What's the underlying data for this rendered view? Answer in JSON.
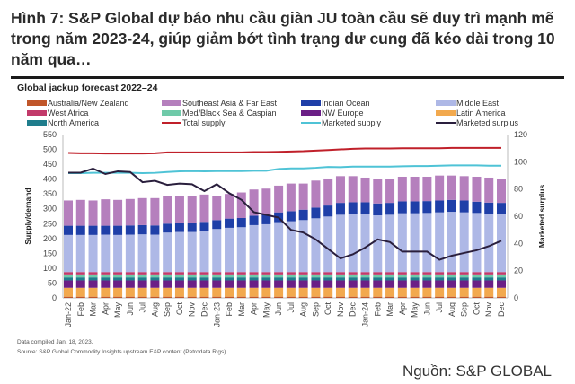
{
  "header": {
    "title": "Hình 7: S&P Global dự báo nhu cầu giàn JU toàn cầu sẽ duy trì mạnh mẽ trong năm 2023-24, giúp giảm bớt tình trạng dư cung đã kéo dài trong 10 năm qua…"
  },
  "footer": {
    "note": "Data compiled Jan. 18, 2023.",
    "source": "Source: S&P Global Commodity Insights upstream E&P content (Petrodata Rigs).",
    "credit": "Nguồn: S&P GLOBAL"
  },
  "chart_data": {
    "type": "bar",
    "title": "Global jackup forecast 2022–24",
    "ylabel": "Supply/demand",
    "y2label": "Marketed surplus",
    "ylim": [
      0,
      550
    ],
    "y2lim": [
      0,
      120
    ],
    "yticks": [
      "0",
      "50",
      "100",
      "150",
      "200",
      "250",
      "300",
      "350",
      "400",
      "450",
      "500",
      "550"
    ],
    "y2ticks": [
      "0",
      "20",
      "40",
      "60",
      "80",
      "100",
      "120"
    ],
    "legend_position": "top",
    "categories": [
      "Jan-22",
      "Feb",
      "Mar",
      "Apr",
      "May",
      "Jun",
      "Jul",
      "Aug",
      "Sep",
      "Oct",
      "Nov",
      "Dec",
      "Jan-23",
      "Feb",
      "Mar",
      "Apr",
      "May",
      "Jun",
      "Jul",
      "Aug",
      "Sep",
      "Oct",
      "Nov",
      "Dec",
      "Jan-24",
      "Feb",
      "Mar",
      "Apr",
      "May",
      "Jun",
      "Jul",
      "Aug",
      "Sep",
      "Oct",
      "Nov",
      "Dec"
    ],
    "stack_series": [
      {
        "name": "Australia/New Zealand",
        "color": "#c0562a",
        "values": [
          4,
          4,
          4,
          4,
          4,
          4,
          4,
          4,
          4,
          4,
          4,
          4,
          4,
          4,
          4,
          4,
          4,
          4,
          4,
          4,
          4,
          4,
          4,
          4,
          4,
          4,
          4,
          4,
          4,
          4,
          4,
          4,
          4,
          4,
          4,
          4
        ]
      },
      {
        "name": "Latin America",
        "color": "#f2a94e",
        "values": [
          30,
          30,
          30,
          30,
          30,
          30,
          30,
          30,
          30,
          30,
          30,
          30,
          30,
          30,
          30,
          30,
          30,
          30,
          30,
          30,
          30,
          30,
          30,
          30,
          30,
          30,
          30,
          30,
          30,
          30,
          30,
          30,
          30,
          30,
          30,
          30
        ]
      },
      {
        "name": "NW Europe",
        "color": "#6b1f86",
        "values": [
          25,
          25,
          25,
          25,
          25,
          25,
          25,
          25,
          25,
          25,
          25,
          25,
          25,
          25,
          25,
          25,
          25,
          25,
          25,
          25,
          25,
          25,
          25,
          25,
          25,
          25,
          25,
          25,
          25,
          25,
          25,
          25,
          25,
          25,
          25,
          25
        ]
      },
      {
        "name": "North America",
        "color": "#1f7d8c",
        "values": [
          10,
          10,
          10,
          10,
          10,
          10,
          10,
          10,
          10,
          10,
          10,
          10,
          10,
          10,
          10,
          10,
          10,
          10,
          10,
          10,
          10,
          10,
          10,
          10,
          10,
          10,
          10,
          10,
          10,
          10,
          10,
          10,
          10,
          10,
          10,
          10
        ]
      },
      {
        "name": "Med/Black Sea & Caspian",
        "color": "#6fcaa9",
        "values": [
          10,
          10,
          10,
          10,
          10,
          10,
          10,
          10,
          10,
          10,
          10,
          10,
          10,
          10,
          10,
          10,
          10,
          10,
          10,
          10,
          10,
          10,
          10,
          10,
          10,
          10,
          10,
          10,
          10,
          10,
          10,
          10,
          10,
          10,
          10,
          10
        ]
      },
      {
        "name": "West Africa",
        "color": "#c23a6a",
        "values": [
          8,
          8,
          8,
          8,
          8,
          8,
          8,
          8,
          8,
          8,
          8,
          8,
          8,
          8,
          8,
          8,
          8,
          8,
          8,
          8,
          8,
          8,
          8,
          8,
          8,
          8,
          8,
          8,
          8,
          8,
          8,
          8,
          8,
          8,
          8,
          8
        ]
      },
      {
        "name": "Middle East",
        "color": "#aeb8e6",
        "values": [
          125,
          125,
          125,
          126,
          125,
          126,
          127,
          126,
          133,
          135,
          135,
          139,
          145,
          149,
          151,
          158,
          161,
          168,
          171,
          175,
          181,
          187,
          193,
          195,
          195,
          191,
          193,
          198,
          198,
          199,
          201,
          203,
          201,
          199,
          197,
          197
        ]
      },
      {
        "name": "Indian Ocean",
        "color": "#1f3fa8",
        "values": [
          31,
          31,
          31,
          30,
          31,
          31,
          31,
          31,
          30,
          30,
          30,
          30,
          30,
          31,
          31,
          32,
          32,
          33,
          34,
          35,
          36,
          37,
          40,
          40,
          40,
          40,
          40,
          40,
          40,
          40,
          40,
          40,
          40,
          38,
          37,
          36
        ]
      },
      {
        "name": "Southeast Asia & Far East",
        "color": "#b57fbd",
        "values": [
          85,
          87,
          85,
          89,
          87,
          89,
          91,
          92,
          92,
          90,
          92,
          92,
          82,
          83,
          86,
          88,
          88,
          90,
          93,
          88,
          91,
          91,
          90,
          88,
          83,
          82,
          80,
          83,
          83,
          82,
          84,
          82,
          82,
          84,
          84,
          80
        ]
      }
    ],
    "line_series": [
      {
        "name": "Total supply",
        "color": "#c0202a",
        "axis": "left",
        "values": [
          488,
          487,
          487,
          486,
          486,
          486,
          486,
          487,
          490,
          490,
          490,
          490,
          490,
          490,
          490,
          491,
          491,
          492,
          493,
          494,
          496,
          498,
          500,
          502,
          503,
          503,
          503,
          504,
          504,
          504,
          504,
          505,
          505,
          505,
          505,
          505
        ]
      },
      {
        "name": "Marketed supply",
        "color": "#4fc3d6",
        "axis": "left",
        "values": [
          420,
          420,
          421,
          421,
          421,
          421,
          420,
          421,
          424,
          426,
          427,
          426,
          427,
          427,
          427,
          428,
          428,
          434,
          436,
          436,
          438,
          441,
          440,
          442,
          442,
          442,
          442,
          443,
          444,
          444,
          445,
          446,
          446,
          446,
          445,
          445
        ]
      },
      {
        "name": "Marketed surplus",
        "color": "#2a1f3d",
        "axis": "right",
        "values": [
          92,
          92,
          95,
          91,
          93,
          92.5,
          85,
          86,
          83,
          84,
          83.5,
          78.5,
          83.5,
          77,
          72,
          63,
          61,
          59,
          50,
          48,
          43,
          36,
          29,
          32,
          37,
          43,
          41,
          34,
          34,
          34,
          28,
          31,
          33,
          35,
          38,
          42
        ]
      }
    ],
    "legend_order": [
      "Australia/New Zealand",
      "Southeast Asia & Far East",
      "Indian Ocean",
      "Middle East",
      "West Africa",
      "Med/Black Sea & Caspian",
      "NW Europe",
      "Latin America",
      "North America",
      "Total supply",
      "Marketed supply",
      "Marketed surplus"
    ]
  }
}
